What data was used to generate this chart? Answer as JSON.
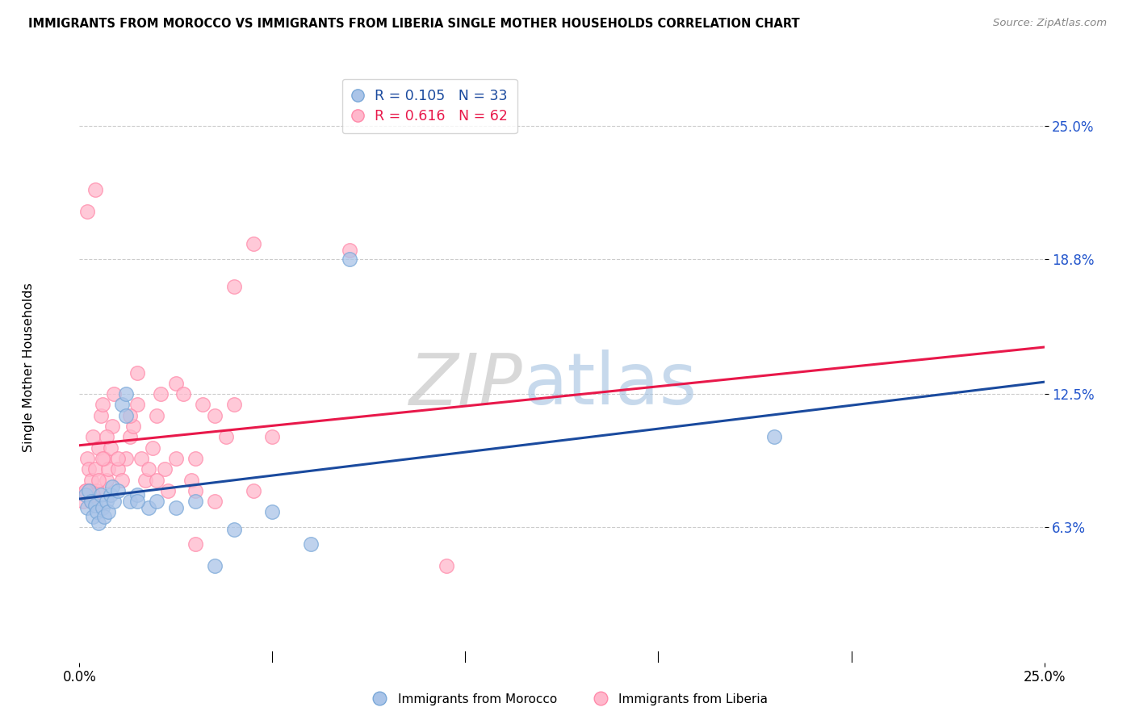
{
  "title": "IMMIGRANTS FROM MOROCCO VS IMMIGRANTS FROM LIBERIA SINGLE MOTHER HOUSEHOLDS CORRELATION CHART",
  "source": "Source: ZipAtlas.com",
  "ylabel": "Single Mother Households",
  "yticks_labels": [
    "6.3%",
    "12.5%",
    "18.8%",
    "25.0%"
  ],
  "ytick_vals": [
    6.3,
    12.5,
    18.8,
    25.0
  ],
  "xmin": 0.0,
  "xmax": 25.0,
  "ymin": 0.0,
  "ymax": 27.5,
  "morocco_fill": "#aac4e8",
  "morocco_edge": "#7aa8d8",
  "liberia_fill": "#ffb8cc",
  "liberia_edge": "#ff8aaa",
  "morocco_line_color": "#1a4a9e",
  "liberia_line_color": "#e8184a",
  "legend_r_morocco": "R = 0.105",
  "legend_n_morocco": "N = 33",
  "legend_r_liberia": "R = 0.616",
  "legend_n_liberia": "N = 62",
  "watermark_zip": "ZIP",
  "watermark_atlas": "atlas",
  "morocco_x": [
    0.15,
    0.2,
    0.25,
    0.3,
    0.35,
    0.4,
    0.45,
    0.5,
    0.55,
    0.6,
    0.65,
    0.7,
    0.75,
    0.8,
    0.85,
    0.9,
    1.0,
    1.1,
    1.2,
    1.3,
    1.5,
    1.8,
    2.0,
    2.5,
    3.0,
    3.5,
    4.0,
    5.0,
    6.0,
    7.0,
    1.2,
    1.5,
    18.0
  ],
  "morocco_y": [
    7.8,
    7.2,
    8.0,
    7.5,
    6.8,
    7.3,
    7.0,
    6.5,
    7.8,
    7.2,
    6.8,
    7.5,
    7.0,
    7.8,
    8.2,
    7.5,
    8.0,
    12.0,
    11.5,
    7.5,
    7.8,
    7.2,
    7.5,
    7.2,
    7.5,
    4.5,
    6.2,
    7.0,
    5.5,
    18.8,
    12.5,
    7.5,
    10.5
  ],
  "liberia_x": [
    0.1,
    0.15,
    0.2,
    0.25,
    0.3,
    0.35,
    0.4,
    0.45,
    0.5,
    0.55,
    0.6,
    0.65,
    0.7,
    0.75,
    0.8,
    0.85,
    0.9,
    1.0,
    1.1,
    1.2,
    1.3,
    1.4,
    1.5,
    1.6,
    1.7,
    1.8,
    1.9,
    2.0,
    2.1,
    2.2,
    2.3,
    2.5,
    2.7,
    2.9,
    3.0,
    3.2,
    3.5,
    3.8,
    4.0,
    4.5,
    5.0,
    0.3,
    0.5,
    0.7,
    1.0,
    1.3,
    0.2,
    0.4,
    2.5,
    3.5,
    0.25,
    0.35,
    0.6,
    1.5,
    2.0,
    3.0,
    4.5,
    7.0,
    9.5,
    0.15,
    3.0,
    4.0
  ],
  "liberia_y": [
    7.5,
    8.0,
    9.5,
    9.0,
    8.5,
    10.5,
    9.0,
    8.0,
    10.0,
    11.5,
    12.0,
    9.5,
    8.5,
    9.0,
    10.0,
    11.0,
    12.5,
    9.0,
    8.5,
    9.5,
    10.5,
    11.0,
    12.0,
    9.5,
    8.5,
    9.0,
    10.0,
    11.5,
    12.5,
    9.0,
    8.0,
    13.0,
    12.5,
    8.5,
    9.5,
    12.0,
    11.5,
    10.5,
    12.0,
    8.0,
    10.5,
    7.5,
    8.5,
    10.5,
    9.5,
    11.5,
    21.0,
    22.0,
    9.5,
    7.5,
    8.0,
    7.8,
    9.5,
    13.5,
    8.5,
    8.0,
    19.5,
    19.2,
    4.5,
    8.0,
    5.5,
    17.5
  ]
}
